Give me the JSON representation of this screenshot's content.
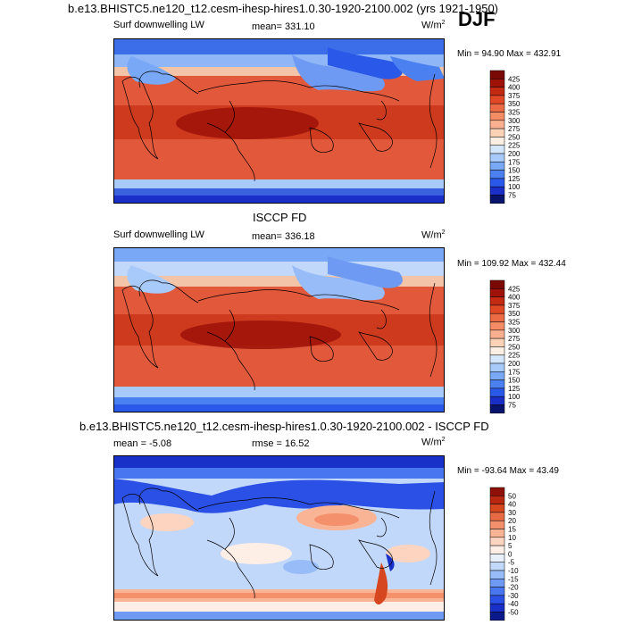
{
  "season": "DJF",
  "min_label": "Min =",
  "max_label": "Max =",
  "panels": [
    {
      "title": "b.e13.BHISTC5.ne120_t12.cesm-ihesp-hires1.0.30-1920-2100.002 (yrs 1921-1950)",
      "variable": "Surf downwelling LW",
      "stat_text": "mean= 331.10",
      "units_base": "W/m",
      "units_exp": "2",
      "min": "94.90",
      "max": "432.91",
      "colorbar_labels": [
        "425",
        "400",
        "375",
        "350",
        "325",
        "300",
        "275",
        "250",
        "225",
        "200",
        "175",
        "150",
        "125",
        "100",
        "75"
      ]
    },
    {
      "title": "ISCCP FD",
      "variable": "Surf downwelling LW",
      "stat_text": "mean= 336.18",
      "units_base": "W/m",
      "units_exp": "2",
      "min": "109.92",
      "max": "432.44",
      "colorbar_labels": [
        "425",
        "400",
        "375",
        "350",
        "325",
        "300",
        "275",
        "250",
        "225",
        "200",
        "175",
        "150",
        "125",
        "100",
        "75"
      ]
    },
    {
      "title": "b.e13.BHISTC5.ne120_t12.cesm-ihesp-hires1.0.30-1920-2100.002 - ISCCP FD",
      "variable": "",
      "stat_text": "mean =  -5.08",
      "stat2_text": "rmse =  16.52",
      "units_base": "W/m",
      "units_exp": "2",
      "min": "-93.64",
      "max": " 43.49",
      "colorbar_labels": [
        "50",
        "40",
        "30",
        "20",
        "15",
        "10",
        "5",
        "0",
        "-5",
        "-10",
        "-15",
        "-20",
        "-30",
        "-40",
        "-50"
      ]
    }
  ],
  "colors": {
    "abs_scale": [
      "#08136e",
      "#1a2fc8",
      "#2a58e8",
      "#4a80f0",
      "#78a8f6",
      "#a8cafa",
      "#d4e6fb",
      "#fbeee2",
      "#fcd2b6",
      "#f9b090",
      "#f48c66",
      "#ec6a44",
      "#e04826",
      "#c42a12",
      "#9e1208",
      "#7a0804"
    ],
    "diff_scale": [
      "#0a1a8a",
      "#1830c8",
      "#2a50e6",
      "#4876f0",
      "#6f9af4",
      "#98bcf8",
      "#c2d8fb",
      "#e8f0fc",
      "#fdeee6",
      "#fcd4bf",
      "#f9b496",
      "#f4906c",
      "#e86a44",
      "#d6461f",
      "#b82810",
      "#8e1008"
    ],
    "ocean_abs": "#e05535",
    "land_line": "#000000"
  }
}
